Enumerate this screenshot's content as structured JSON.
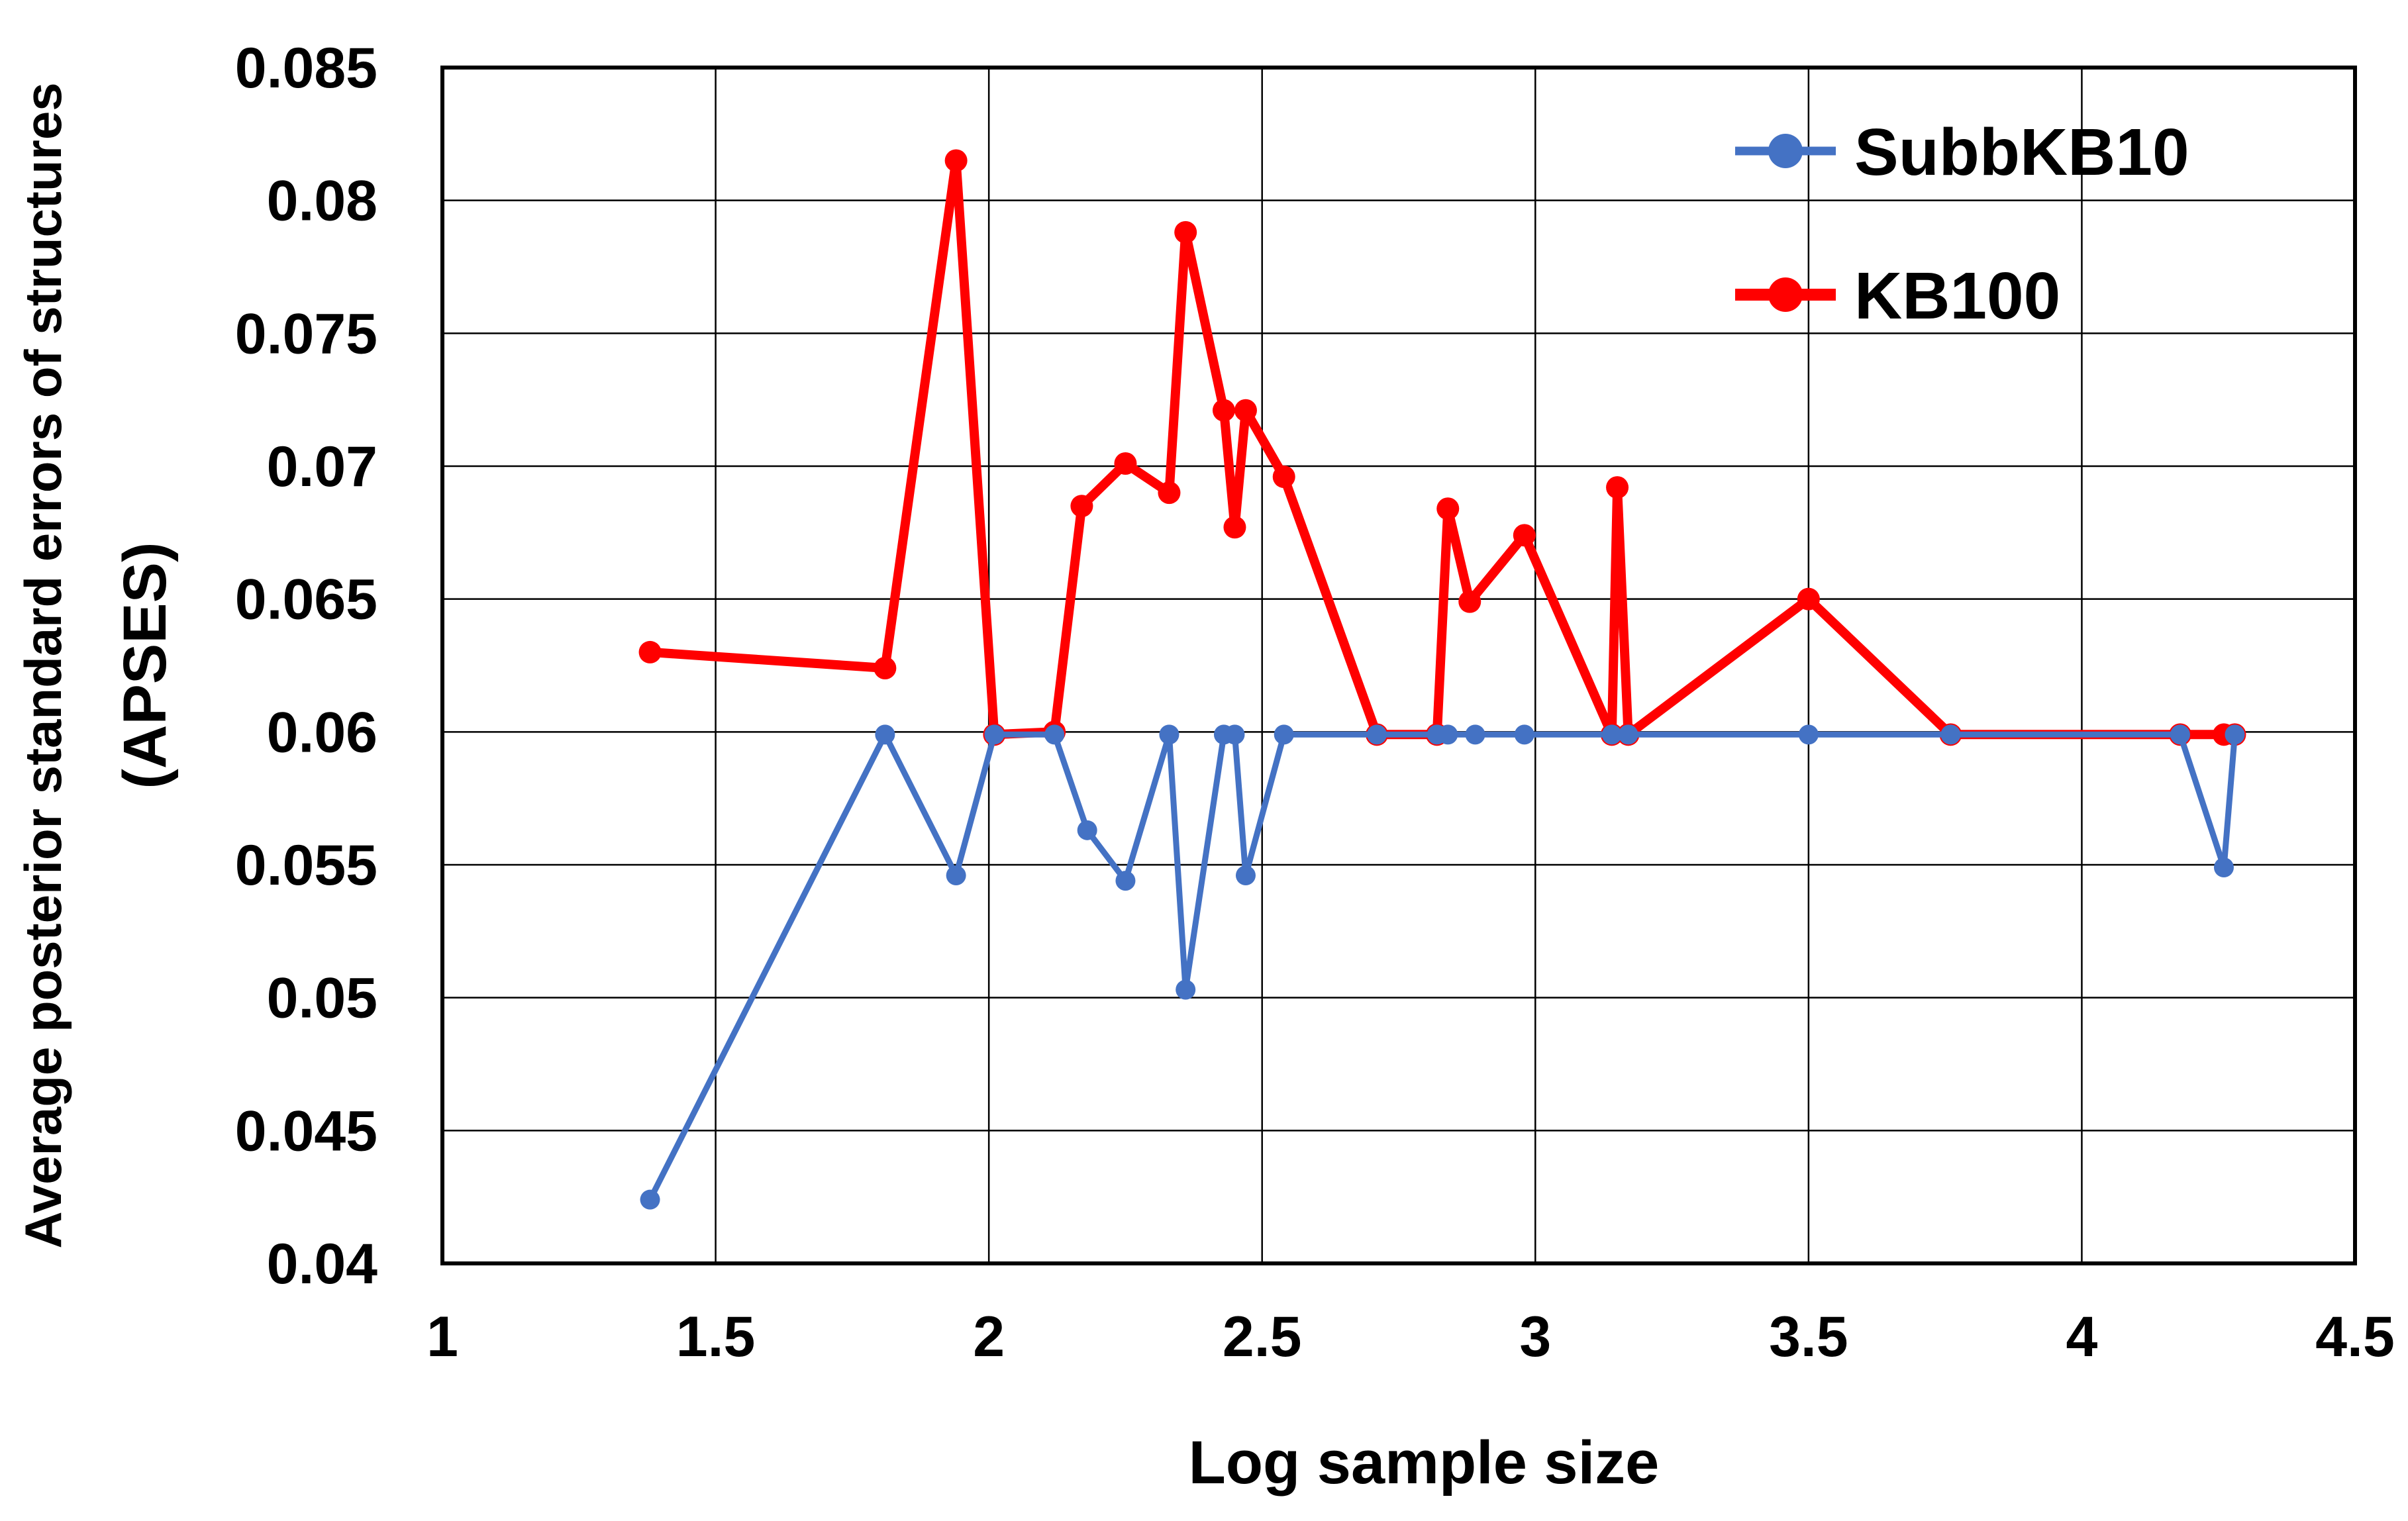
{
  "chart_data": {
    "type": "line",
    "title": "",
    "xlabel": "Log sample size",
    "ylabel": "Average posterior standard errors of structures",
    "ylabel_line2": "(APSES)",
    "xlim": [
      1,
      4.5
    ],
    "ylim": [
      0.04,
      0.085
    ],
    "x_ticks": [
      1,
      1.5,
      2,
      2.5,
      3,
      3.5,
      4,
      4.5
    ],
    "x_tick_labels": [
      "1",
      "1.5",
      "2",
      "2.5",
      "3",
      "3.5",
      "4",
      "4.5"
    ],
    "y_ticks": [
      0.04,
      0.045,
      0.05,
      0.055,
      0.06,
      0.065,
      0.07,
      0.075,
      0.08,
      0.085
    ],
    "y_tick_labels": [
      "0.04",
      "0.045",
      "0.05",
      "0.055",
      "0.06",
      "0.065",
      "0.07",
      "0.075",
      "0.08",
      "0.085"
    ],
    "grid": true,
    "legend_position": "top-right",
    "series": [
      {
        "name": "SubbKB10",
        "color": "#4472C4",
        "x": [
          1.38,
          1.81,
          1.94,
          2.01,
          2.12,
          2.18,
          2.25,
          2.33,
          2.36,
          2.43,
          2.45,
          2.47,
          2.54,
          2.71,
          2.82,
          2.84,
          2.89,
          2.98,
          3.14,
          3.17,
          3.5,
          3.76,
          4.18,
          4.26,
          4.28
        ],
        "y": [
          0.0424,
          0.0599,
          0.0546,
          0.0599,
          0.0599,
          0.0563,
          0.0544,
          0.0599,
          0.0503,
          0.0599,
          0.0599,
          0.0546,
          0.0599,
          0.0599,
          0.0599,
          0.0599,
          0.0599,
          0.0599,
          0.0599,
          0.0599,
          0.0599,
          0.0599,
          0.0599,
          0.0549,
          0.0599
        ]
      },
      {
        "name": "KB100",
        "color": "#FF0000",
        "x": [
          1.38,
          1.81,
          1.94,
          2.01,
          2.12,
          2.17,
          2.25,
          2.33,
          2.36,
          2.43,
          2.45,
          2.47,
          2.54,
          2.71,
          2.82,
          2.84,
          2.88,
          2.98,
          3.14,
          3.15,
          3.17,
          3.5,
          3.76,
          4.18,
          4.26,
          4.28
        ],
        "y": [
          0.063,
          0.0624,
          0.0815,
          0.0599,
          0.06,
          0.0685,
          0.0701,
          0.069,
          0.0788,
          0.0721,
          0.0677,
          0.0721,
          0.0696,
          0.0599,
          0.0599,
          0.0684,
          0.0649,
          0.0674,
          0.0599,
          0.0692,
          0.0599,
          0.065,
          0.0599,
          0.0599,
          0.0599,
          0.0599
        ]
      }
    ]
  }
}
